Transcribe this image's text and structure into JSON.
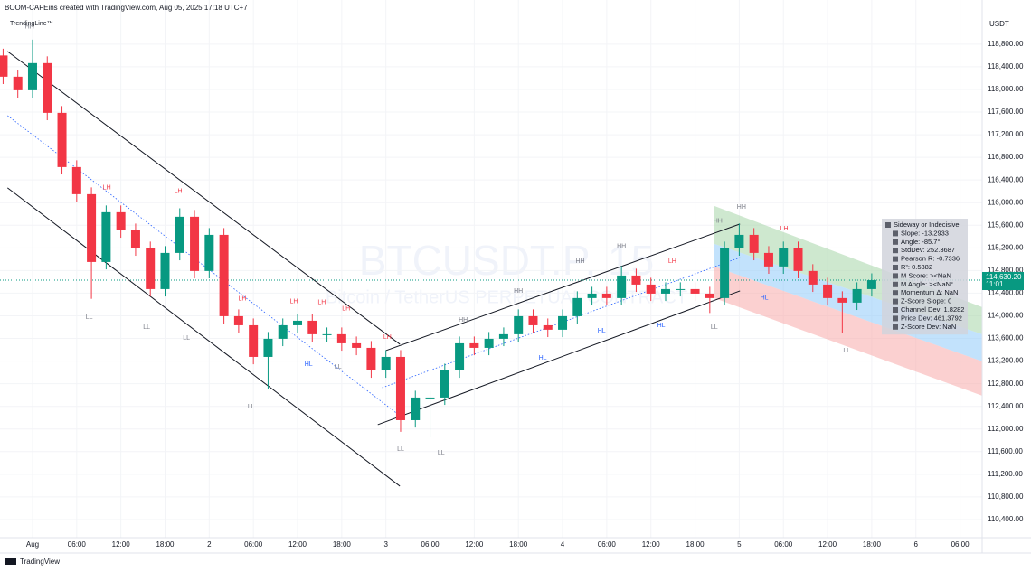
{
  "chart_data": {
    "type": "candlestick",
    "title": "BOOM-CAFEins created with TradingView.com, Aug 05, 2025 17:18 UTC+7",
    "indicator": "TrendingLine™",
    "currency": "USDT",
    "watermark": "BTCUSDT.P, 15",
    "watermark_subtitle": "Bitcoin / TetherUS PERPETUAL CONTRACT",
    "footer": "TradingView",
    "up_color": "#089981",
    "down_color": "#f23645",
    "x": [
      -4,
      -2,
      0,
      2,
      4,
      6,
      8,
      10,
      12,
      14,
      16,
      18,
      20,
      22,
      24,
      26,
      28,
      30,
      32,
      34,
      36,
      38,
      40,
      42,
      44,
      46,
      48,
      50,
      52,
      54,
      56,
      58,
      60,
      62,
      64,
      66,
      68,
      70,
      72,
      74,
      76,
      78,
      80,
      82,
      84,
      86,
      88,
      90,
      92,
      94,
      96,
      98,
      100,
      102,
      104,
      106,
      108,
      110,
      112,
      114
    ],
    "open": [
      118600,
      118225,
      117985,
      118465,
      117586,
      116628,
      116149,
      114951,
      115830,
      115510,
      115191,
      114472,
      115111,
      115750,
      114792,
      115430,
      113993,
      113833,
      113274,
      113594,
      113833,
      113913,
      113674,
      113674,
      113514,
      113434,
      113035,
      113274,
      112156,
      112556,
      112556,
      113035,
      113514,
      113434,
      113594,
      113674,
      113993,
      113833,
      113754,
      113993,
      114313,
      114392,
      114313,
      114712,
      114552,
      114392,
      114472,
      114472,
      114392,
      114313,
      115191,
      115430,
      115111,
      114872,
      115191,
      114792,
      114552,
      114313,
      114233,
      114472
    ],
    "high": [
      118720,
      118345,
      118880,
      118585,
      117706,
      116748,
      116269,
      115950,
      115950,
      115630,
      115311,
      115231,
      115900,
      115870,
      115550,
      115550,
      114113,
      113953,
      113714,
      113953,
      114033,
      114033,
      113794,
      113794,
      113634,
      113554,
      113394,
      113394,
      112676,
      112676,
      113155,
      113634,
      113634,
      113714,
      113794,
      114113,
      114113,
      113953,
      114113,
      114433,
      114512,
      114512,
      114880,
      114832,
      114672,
      114592,
      114592,
      114592,
      114512,
      115311,
      115630,
      115550,
      115231,
      115311,
      115311,
      114912,
      114672,
      114433,
      114592,
      114750
    ],
    "low": [
      118095,
      117855,
      117855,
      117456,
      116498,
      116019,
      114300,
      114821,
      115380,
      115061,
      114342,
      114342,
      114981,
      114662,
      114662,
      113863,
      113703,
      113144,
      112715,
      113464,
      113703,
      113544,
      113544,
      113384,
      113304,
      112905,
      112905,
      111950,
      112026,
      111850,
      112426,
      112905,
      113304,
      113304,
      113464,
      113544,
      113703,
      113624,
      113624,
      113863,
      114183,
      114183,
      114183,
      114422,
      114262,
      114262,
      114342,
      114262,
      114050,
      114183,
      115061,
      114981,
      114742,
      114742,
      114662,
      114422,
      114183,
      113700,
      114103,
      114342
    ],
    "close": [
      118225,
      117985,
      118465,
      117586,
      116628,
      116149,
      114951,
      115830,
      115510,
      115191,
      114472,
      115111,
      115750,
      114792,
      115430,
      113993,
      113833,
      113274,
      113594,
      113833,
      113913,
      113674,
      113674,
      113514,
      113434,
      113035,
      113274,
      112156,
      112556,
      112556,
      113035,
      113514,
      113434,
      113594,
      113674,
      113993,
      113833,
      113754,
      113993,
      114313,
      114392,
      114313,
      114712,
      114552,
      114392,
      114472,
      114472,
      114392,
      114313,
      115191,
      115430,
      115111,
      114872,
      115191,
      114792,
      114552,
      114313,
      114233,
      114472,
      114630
    ],
    "last_price": {
      "value": 114630.2,
      "label": "114,630.20"
    },
    "countdown": "11:01",
    "xlim": [
      -4.42,
      129
    ],
    "ylim": [
      110080,
      119580
    ],
    "xticks": [
      {
        "value": 0,
        "label": "Aug"
      },
      {
        "value": 6,
        "label": "06:00"
      },
      {
        "value": 12,
        "label": "12:00"
      },
      {
        "value": 18,
        "label": "18:00"
      },
      {
        "value": 24,
        "label": "2"
      },
      {
        "value": 30,
        "label": "06:00"
      },
      {
        "value": 36,
        "label": "12:00"
      },
      {
        "value": 42,
        "label": "18:00"
      },
      {
        "value": 48,
        "label": "3"
      },
      {
        "value": 54,
        "label": "06:00"
      },
      {
        "value": 60,
        "label": "12:00"
      },
      {
        "value": 66,
        "label": "18:00"
      },
      {
        "value": 72,
        "label": "4"
      },
      {
        "value": 78,
        "label": "06:00"
      },
      {
        "value": 84,
        "label": "12:00"
      },
      {
        "value": 90,
        "label": "18:00"
      },
      {
        "value": 96,
        "label": "5"
      },
      {
        "value": 102,
        "label": "06:00"
      },
      {
        "value": 108,
        "label": "12:00"
      },
      {
        "value": 114,
        "label": "18:00"
      },
      {
        "value": 120,
        "label": "6"
      },
      {
        "value": 126,
        "label": "06:00"
      }
    ],
    "yticks": [
      {
        "value": 110400,
        "label": "110,400.00"
      },
      {
        "value": 110800,
        "label": "110,800.00"
      },
      {
        "value": 111200,
        "label": "111,200.00"
      },
      {
        "value": 111600,
        "label": "111,600.00"
      },
      {
        "value": 112000,
        "label": "112,000.00"
      },
      {
        "value": 112400,
        "label": "112,400.00"
      },
      {
        "value": 112800,
        "label": "112,800.00"
      },
      {
        "value": 113200,
        "label": "113,200.00"
      },
      {
        "value": 113600,
        "label": "113,600.00"
      },
      {
        "value": 114000,
        "label": "114,000.00"
      },
      {
        "value": 114400,
        "label": "114,400.00"
      },
      {
        "value": 114800,
        "label": "114,800.00"
      },
      {
        "value": 115200,
        "label": "115,200.00"
      },
      {
        "value": 115600,
        "label": "115,600.00"
      },
      {
        "value": 116000,
        "label": "116,000.00"
      },
      {
        "value": 116400,
        "label": "116,400.00"
      },
      {
        "value": 116800,
        "label": "116,800.00"
      },
      {
        "value": 117200,
        "label": "117,200.00"
      },
      {
        "value": 117600,
        "label": "117,600.00"
      },
      {
        "value": 118000,
        "label": "118,000.00"
      },
      {
        "value": 118400,
        "label": "118,400.00"
      },
      {
        "value": 118800,
        "label": "118,800.00"
      }
    ],
    "trendlines": [
      {
        "color": "#131722",
        "dashed": false,
        "x": [
          -3.4,
          49.9
        ],
        "y": [
          118672,
          113498
        ]
      },
      {
        "color": "#131722",
        "dashed": false,
        "x": [
          -3.4,
          49.9
        ],
        "y": [
          116261,
          110991
        ]
      },
      {
        "color": "#2962ff",
        "dashed": true,
        "x": [
          -3.4,
          49.9
        ],
        "y": [
          117538,
          112236
        ]
      },
      {
        "color": "#131722",
        "dashed": false,
        "x": [
          48.0,
          96.1
        ],
        "y": [
          113386,
          115622
        ]
      },
      {
        "color": "#131722",
        "dashed": false,
        "x": [
          46.9,
          96.1
        ],
        "y": [
          112077,
          114440
        ]
      },
      {
        "color": "#2962ff",
        "dashed": true,
        "x": [
          47.5,
          96.1
        ],
        "y": [
          112730,
          115030
        ]
      }
    ],
    "regression_bands": {
      "x": [
        92.6,
        129
      ],
      "bands": [
        {
          "color": "#a5d6a7",
          "upper": [
            115941,
            114153
          ],
          "lower": [
            115271,
            113674
          ]
        },
        {
          "color": "#90caf9",
          "upper": [
            115271,
            113674
          ],
          "lower": [
            114872,
            113195
          ]
        },
        {
          "color": "#f7a9a9",
          "upper": [
            114872,
            113195
          ],
          "lower": [
            114313,
            112588
          ]
        }
      ]
    },
    "pivot_colors": {
      "HH": "#787b86",
      "LL": "#787b86",
      "LH": "#f23645",
      "HL": "#2962ff"
    },
    "pivots": [
      {
        "label": "HH",
        "x": -0.4,
        "price": 119103
      },
      {
        "label": "LH",
        "x": 10.1,
        "price": 116261
      },
      {
        "label": "LH",
        "x": 19.8,
        "price": 116197
      },
      {
        "label": "LL",
        "x": 7.7,
        "price": 113977
      },
      {
        "label": "LL",
        "x": 15.5,
        "price": 113801
      },
      {
        "label": "LL",
        "x": 20.9,
        "price": 113610
      },
      {
        "label": "LH",
        "x": 28.5,
        "price": 114297
      },
      {
        "label": "LH",
        "x": 35.5,
        "price": 114249
      },
      {
        "label": "LH",
        "x": 39.3,
        "price": 114233
      },
      {
        "label": "LH",
        "x": 42.6,
        "price": 114121
      },
      {
        "label": "HL",
        "x": 37.5,
        "price": 113147
      },
      {
        "label": "LL",
        "x": 41.5,
        "price": 113099
      },
      {
        "label": "LL",
        "x": 29.7,
        "price": 112396
      },
      {
        "label": "LH",
        "x": 48.2,
        "price": 113626
      },
      {
        "label": "LL",
        "x": 50.0,
        "price": 111646
      },
      {
        "label": "LL",
        "x": 55.5,
        "price": 111582
      },
      {
        "label": "HH",
        "x": 58.5,
        "price": 113929
      },
      {
        "label": "HH",
        "x": 66.0,
        "price": 114440
      },
      {
        "label": "HL",
        "x": 69.3,
        "price": 113258
      },
      {
        "label": "HH",
        "x": 74.4,
        "price": 114967
      },
      {
        "label": "HL",
        "x": 77.3,
        "price": 113737
      },
      {
        "label": "HH",
        "x": 80.0,
        "price": 115223
      },
      {
        "label": "LH",
        "x": 86.9,
        "price": 114967
      },
      {
        "label": "HL",
        "x": 85.4,
        "price": 113833
      },
      {
        "label": "LL",
        "x": 92.6,
        "price": 113801
      },
      {
        "label": "HH",
        "x": 93.1,
        "price": 115670
      },
      {
        "label": "HH",
        "x": 96.3,
        "price": 115925
      },
      {
        "label": "LH",
        "x": 102.1,
        "price": 115542
      },
      {
        "label": "HL",
        "x": 99.4,
        "price": 114313
      },
      {
        "label": "LL",
        "x": 110.6,
        "price": 113386
      }
    ],
    "stats_panel": [
      "Sideway or Indecisive",
      "Slope: -13.2933",
      "Angle: -85.7°",
      "StdDev: 252.3687",
      "Pearson R: -0.7336",
      "R²: 0.5382",
      "M Score: ><NaN",
      "M Angle: ><NaN°",
      "Momentum ∆: NaN",
      "Z-Score Slope: 0",
      "Channel Dev: 1.8282",
      "Price Dev: 461.3792",
      "Z-Score Dev: NaN"
    ]
  }
}
